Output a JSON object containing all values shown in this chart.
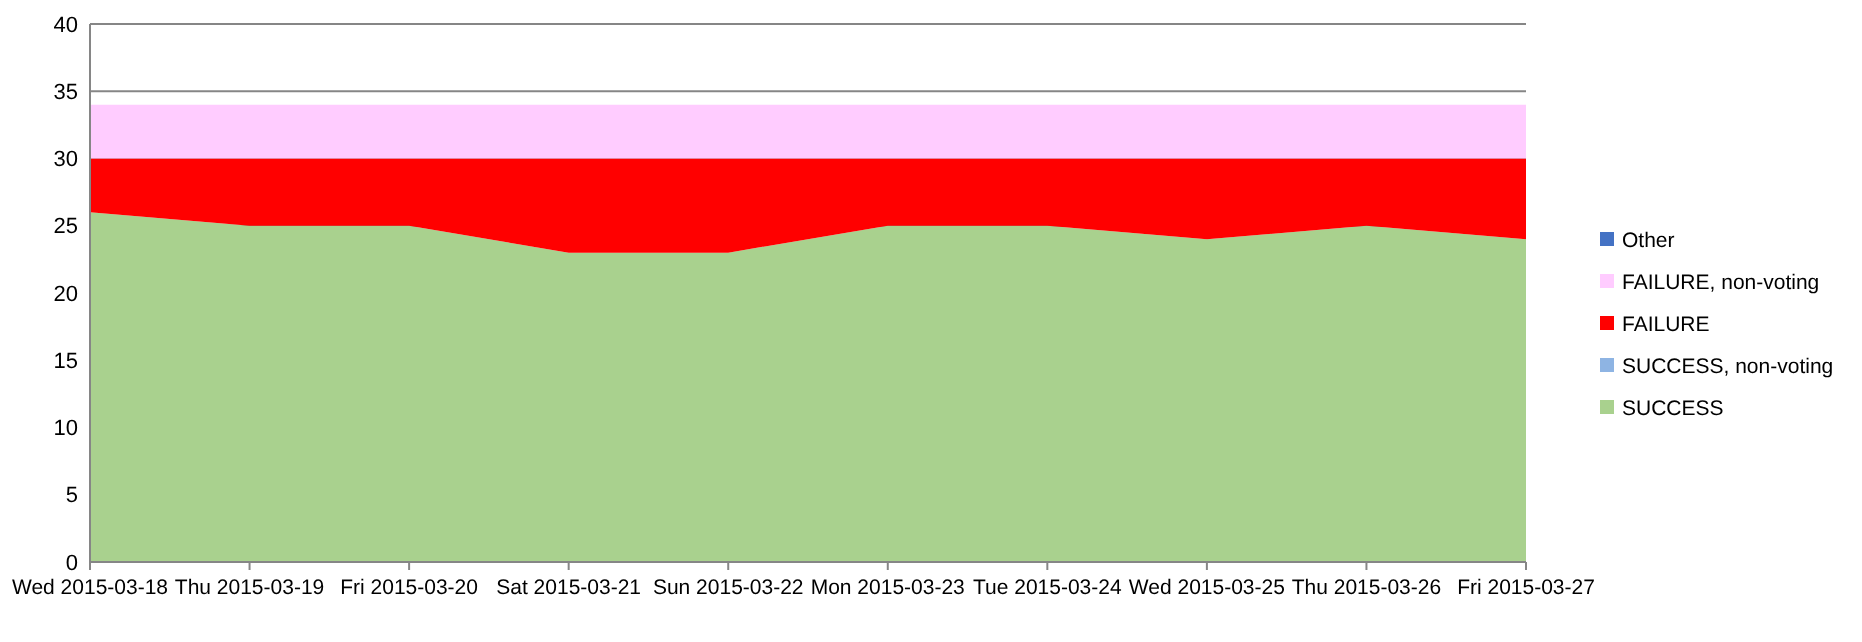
{
  "chart_data": {
    "type": "area",
    "stacked": true,
    "categories": [
      "Wed 2015-03-18",
      "Thu 2015-03-19",
      "Fri 2015-03-20",
      "Sat 2015-03-21",
      "Sun 2015-03-22",
      "Mon 2015-03-23",
      "Tue 2015-03-24",
      "Wed 2015-03-25",
      "Thu 2015-03-26",
      "Fri 2015-03-27"
    ],
    "series": [
      {
        "name": "SUCCESS",
        "color": "#a9d18e",
        "values": [
          26,
          25,
          25,
          23,
          23,
          25,
          25,
          24,
          25,
          24
        ]
      },
      {
        "name": "SUCCESS, non-voting",
        "color": "#8eb4e3",
        "values": [
          null,
          null,
          null,
          null,
          null,
          null,
          null,
          null,
          null,
          null
        ]
      },
      {
        "name": "FAILURE",
        "color": "#ff0000",
        "values": [
          4,
          5,
          5,
          7,
          7,
          5,
          5,
          6,
          5,
          6
        ]
      },
      {
        "name": "FAILURE, non-voting",
        "color": "#ffccff",
        "values": [
          4,
          4,
          4,
          4,
          4,
          4,
          4,
          4,
          4,
          4
        ]
      },
      {
        "name": "Other",
        "color": "#4472c4",
        "values": [
          null,
          null,
          null,
          null,
          null,
          null,
          null,
          null,
          null,
          null
        ]
      }
    ],
    "ylim": [
      0,
      40
    ],
    "yticks": [
      0,
      5,
      10,
      15,
      20,
      25,
      30,
      35,
      40
    ],
    "grid": "y",
    "legend": "right"
  }
}
